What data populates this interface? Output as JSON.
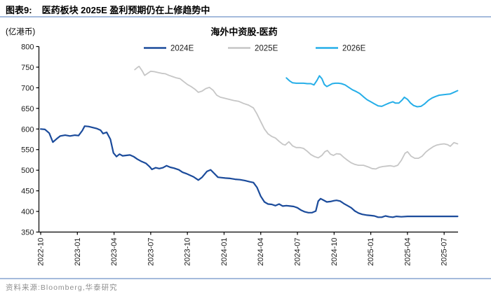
{
  "header": {
    "label": "图表9:",
    "title": "医药板块 2025E 盈利预期仍在上修趋势中"
  },
  "footer": {
    "source": "资料来源:Bloomberg,华泰研究"
  },
  "colors": {
    "divider": "#a5bbdc",
    "axis": "#000000",
    "tick_text": "#1a1a1a",
    "title_text": "#000000",
    "source_text": "#8f8f8f",
    "series_2024e": "#1b4b9b",
    "series_2025e": "#c6c6c6",
    "series_2026e": "#25aee8"
  },
  "chart_data": {
    "type": "line",
    "title": "海外中资股-医药",
    "ylabel": "(亿港币)",
    "xlabel": "",
    "ylim": [
      350,
      800
    ],
    "ytick_step": 50,
    "grid": false,
    "legend_position": "top-center",
    "x_unit": "months since 2022-10",
    "xlim": [
      0,
      34.3
    ],
    "xticks": {
      "positions": [
        0,
        3,
        6,
        9,
        12,
        15,
        18,
        21,
        24,
        27,
        30,
        33
      ],
      "labels": [
        "2022-10",
        "2023-01",
        "2023-04",
        "2023-07",
        "2023-10",
        "2024-01",
        "2024-04",
        "2024-07",
        "2024-10",
        "2025-01",
        "2025-04",
        "2025-07"
      ]
    },
    "series": [
      {
        "name": "2024E",
        "color": "#1b4b9b",
        "width": 2.2,
        "points": [
          [
            0,
            600
          ],
          [
            0.35,
            599
          ],
          [
            0.7,
            590
          ],
          [
            1.0,
            568
          ],
          [
            1.3,
            576
          ],
          [
            1.6,
            583
          ],
          [
            2.0,
            585
          ],
          [
            2.4,
            583
          ],
          [
            2.8,
            585
          ],
          [
            3.1,
            584
          ],
          [
            3.4,
            596
          ],
          [
            3.6,
            607
          ],
          [
            3.9,
            606
          ],
          [
            4.2,
            604
          ],
          [
            4.6,
            601
          ],
          [
            4.9,
            597
          ],
          [
            5.1,
            589
          ],
          [
            5.4,
            592
          ],
          [
            5.7,
            575
          ],
          [
            5.95,
            542
          ],
          [
            6.2,
            533
          ],
          [
            6.45,
            539
          ],
          [
            6.7,
            535
          ],
          [
            7.0,
            536
          ],
          [
            7.3,
            537
          ],
          [
            7.6,
            533
          ],
          [
            7.9,
            527
          ],
          [
            8.2,
            522
          ],
          [
            8.6,
            517
          ],
          [
            8.9,
            509
          ],
          [
            9.1,
            502
          ],
          [
            9.4,
            506
          ],
          [
            9.7,
            504
          ],
          [
            10.0,
            506
          ],
          [
            10.3,
            511
          ],
          [
            10.6,
            507
          ],
          [
            10.9,
            505
          ],
          [
            11.3,
            501
          ],
          [
            11.6,
            495
          ],
          [
            11.9,
            492
          ],
          [
            12.2,
            488
          ],
          [
            12.5,
            484
          ],
          [
            12.9,
            476
          ],
          [
            13.2,
            483
          ],
          [
            13.6,
            497
          ],
          [
            13.9,
            501
          ],
          [
            14.2,
            492
          ],
          [
            14.5,
            483
          ],
          [
            14.8,
            482
          ],
          [
            15.1,
            481
          ],
          [
            15.5,
            480
          ],
          [
            15.9,
            478
          ],
          [
            16.3,
            477
          ],
          [
            16.7,
            475
          ],
          [
            17.1,
            472
          ],
          [
            17.4,
            470
          ],
          [
            17.7,
            458
          ],
          [
            18.0,
            437
          ],
          [
            18.3,
            423
          ],
          [
            18.6,
            418
          ],
          [
            18.9,
            417
          ],
          [
            19.2,
            414
          ],
          [
            19.5,
            418
          ],
          [
            19.8,
            413
          ],
          [
            20.1,
            414
          ],
          [
            20.4,
            413
          ],
          [
            20.7,
            412
          ],
          [
            21.0,
            409
          ],
          [
            21.3,
            403
          ],
          [
            21.6,
            399
          ],
          [
            21.9,
            397
          ],
          [
            22.2,
            397
          ],
          [
            22.5,
            401
          ],
          [
            22.7,
            425
          ],
          [
            22.9,
            431
          ],
          [
            23.1,
            428
          ],
          [
            23.4,
            423
          ],
          [
            23.7,
            424
          ],
          [
            24.0,
            426
          ],
          [
            24.2,
            427
          ],
          [
            24.5,
            425
          ],
          [
            24.8,
            419
          ],
          [
            25.1,
            414
          ],
          [
            25.4,
            409
          ],
          [
            25.7,
            401
          ],
          [
            26.0,
            396
          ],
          [
            26.3,
            393
          ],
          [
            26.7,
            391
          ],
          [
            27.0,
            390
          ],
          [
            27.3,
            389
          ],
          [
            27.6,
            386
          ],
          [
            27.9,
            386
          ],
          [
            28.2,
            389
          ],
          [
            28.5,
            387
          ],
          [
            28.8,
            386
          ],
          [
            29.1,
            388
          ],
          [
            29.5,
            387
          ],
          [
            30.0,
            388
          ],
          [
            30.5,
            388
          ],
          [
            31.0,
            388
          ],
          [
            31.5,
            388
          ],
          [
            32.0,
            388
          ],
          [
            32.5,
            388
          ],
          [
            33.0,
            388
          ],
          [
            33.5,
            388
          ],
          [
            34.1,
            388
          ]
        ]
      },
      {
        "name": "2025E",
        "color": "#c6c6c6",
        "width": 1.8,
        "points": [
          [
            7.7,
            744
          ],
          [
            7.9,
            749
          ],
          [
            8.05,
            752
          ],
          [
            8.3,
            741
          ],
          [
            8.5,
            730
          ],
          [
            8.75,
            735
          ],
          [
            9.0,
            740
          ],
          [
            9.3,
            739
          ],
          [
            9.6,
            737
          ],
          [
            9.9,
            735
          ],
          [
            10.2,
            734
          ],
          [
            10.5,
            730
          ],
          [
            10.8,
            727
          ],
          [
            11.1,
            724
          ],
          [
            11.4,
            722
          ],
          [
            11.7,
            715
          ],
          [
            12.0,
            708
          ],
          [
            12.3,
            703
          ],
          [
            12.6,
            697
          ],
          [
            12.9,
            689
          ],
          [
            13.2,
            692
          ],
          [
            13.5,
            698
          ],
          [
            13.8,
            701
          ],
          [
            14.1,
            694
          ],
          [
            14.4,
            682
          ],
          [
            14.7,
            677
          ],
          [
            15.0,
            675
          ],
          [
            15.4,
            672
          ],
          [
            15.8,
            669
          ],
          [
            16.2,
            667
          ],
          [
            16.6,
            662
          ],
          [
            17.0,
            658
          ],
          [
            17.4,
            651
          ],
          [
            17.7,
            636
          ],
          [
            18.0,
            618
          ],
          [
            18.3,
            600
          ],
          [
            18.6,
            588
          ],
          [
            18.9,
            582
          ],
          [
            19.2,
            578
          ],
          [
            19.5,
            570
          ],
          [
            19.8,
            563
          ],
          [
            20.0,
            561
          ],
          [
            20.3,
            569
          ],
          [
            20.6,
            559
          ],
          [
            20.9,
            555
          ],
          [
            21.2,
            555
          ],
          [
            21.5,
            553
          ],
          [
            21.8,
            546
          ],
          [
            22.1,
            538
          ],
          [
            22.4,
            533
          ],
          [
            22.7,
            530
          ],
          [
            23.0,
            536
          ],
          [
            23.25,
            545
          ],
          [
            23.45,
            548
          ],
          [
            23.7,
            539
          ],
          [
            23.95,
            536
          ],
          [
            24.2,
            540
          ],
          [
            24.5,
            539
          ],
          [
            24.8,
            531
          ],
          [
            25.1,
            524
          ],
          [
            25.4,
            518
          ],
          [
            25.7,
            514
          ],
          [
            26.0,
            512
          ],
          [
            26.4,
            512
          ],
          [
            26.8,
            508
          ],
          [
            27.1,
            504
          ],
          [
            27.4,
            503
          ],
          [
            27.7,
            507
          ],
          [
            28.0,
            509
          ],
          [
            28.3,
            510
          ],
          [
            28.6,
            511
          ],
          [
            28.9,
            509
          ],
          [
            29.2,
            512
          ],
          [
            29.5,
            524
          ],
          [
            29.8,
            541
          ],
          [
            30.0,
            545
          ],
          [
            30.3,
            534
          ],
          [
            30.6,
            529
          ],
          [
            30.9,
            529
          ],
          [
            31.2,
            534
          ],
          [
            31.5,
            544
          ],
          [
            31.8,
            551
          ],
          [
            32.1,
            557
          ],
          [
            32.4,
            561
          ],
          [
            32.7,
            563
          ],
          [
            33.0,
            564
          ],
          [
            33.3,
            562
          ],
          [
            33.5,
            558
          ],
          [
            33.8,
            567
          ],
          [
            34.1,
            564
          ]
        ]
      },
      {
        "name": "2026E",
        "color": "#25aee8",
        "width": 2,
        "points": [
          [
            20.1,
            724
          ],
          [
            20.35,
            717
          ],
          [
            20.6,
            712
          ],
          [
            20.9,
            711
          ],
          [
            21.2,
            711
          ],
          [
            21.5,
            711
          ],
          [
            21.8,
            710
          ],
          [
            22.1,
            710
          ],
          [
            22.35,
            707
          ],
          [
            22.6,
            718
          ],
          [
            22.8,
            729
          ],
          [
            23.0,
            722
          ],
          [
            23.2,
            708
          ],
          [
            23.4,
            703
          ],
          [
            23.6,
            706
          ],
          [
            23.85,
            710
          ],
          [
            24.1,
            711
          ],
          [
            24.35,
            711
          ],
          [
            24.6,
            710
          ],
          [
            24.9,
            707
          ],
          [
            25.2,
            701
          ],
          [
            25.5,
            695
          ],
          [
            25.8,
            691
          ],
          [
            26.1,
            686
          ],
          [
            26.4,
            678
          ],
          [
            26.7,
            671
          ],
          [
            27.0,
            666
          ],
          [
            27.3,
            661
          ],
          [
            27.6,
            656
          ],
          [
            27.9,
            655
          ],
          [
            28.2,
            659
          ],
          [
            28.5,
            663
          ],
          [
            28.8,
            666
          ],
          [
            29.0,
            663
          ],
          [
            29.3,
            663
          ],
          [
            29.55,
            670
          ],
          [
            29.75,
            677
          ],
          [
            30.0,
            672
          ],
          [
            30.25,
            663
          ],
          [
            30.5,
            657
          ],
          [
            30.8,
            654
          ],
          [
            31.1,
            655
          ],
          [
            31.4,
            661
          ],
          [
            31.7,
            669
          ],
          [
            32.0,
            675
          ],
          [
            32.3,
            679
          ],
          [
            32.6,
            682
          ],
          [
            32.9,
            683
          ],
          [
            33.2,
            684
          ],
          [
            33.5,
            685
          ],
          [
            33.8,
            689
          ],
          [
            34.1,
            693
          ]
        ]
      }
    ]
  }
}
